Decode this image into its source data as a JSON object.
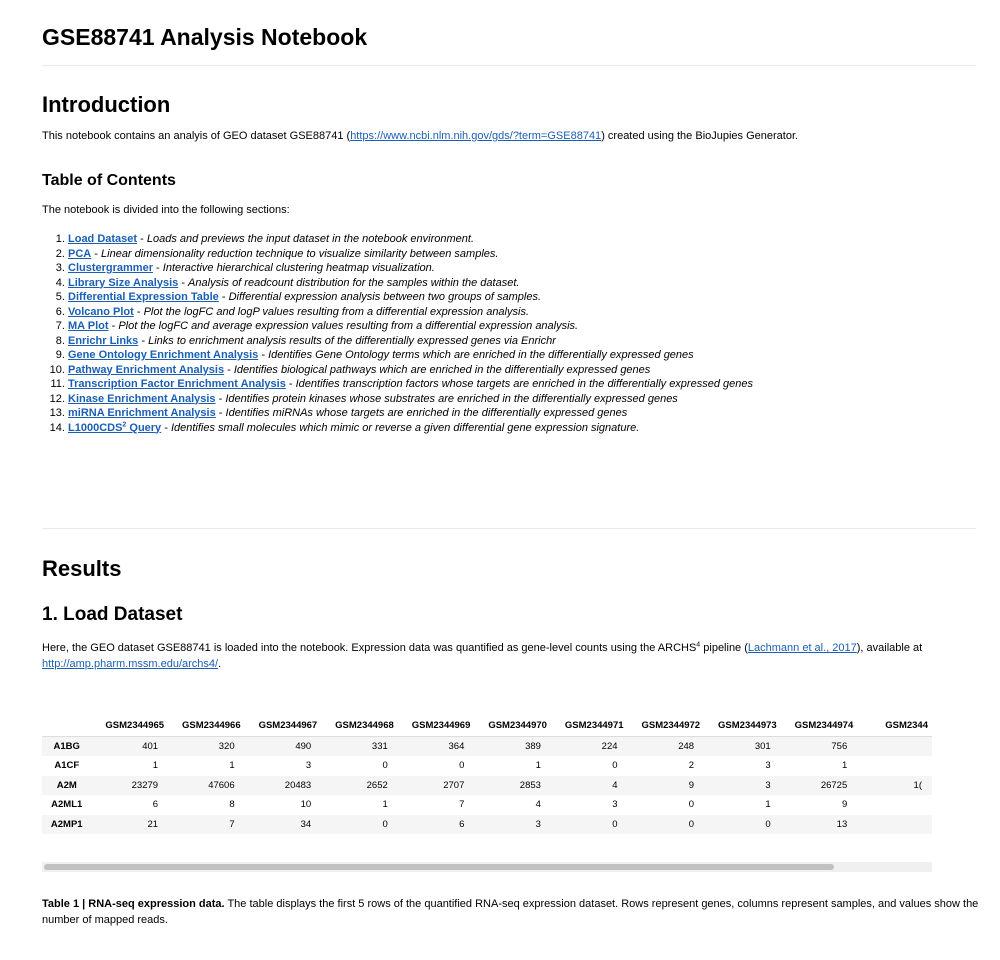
{
  "notebook": {
    "title": "GSE88741 Analysis Notebook"
  },
  "intro": {
    "heading": "Introduction",
    "text_before": "This notebook contains an analyis of GEO dataset GSE88741 (",
    "link": "https://www.ncbi.nlm.nih.gov/gds/?term=GSE88741",
    "text_after": ") created using the BioJupies Generator."
  },
  "toc": {
    "heading": "Table of Contents",
    "intro": "The notebook is divided into the following sections:",
    "items": [
      {
        "label": "Load Dataset",
        "desc": "Loads and previews the input dataset in the notebook environment."
      },
      {
        "label": "PCA",
        "desc": "Linear dimensionality reduction technique to visualize similarity between samples."
      },
      {
        "label": "Clustergrammer",
        "desc": "Interactive hierarchical clustering heatmap visualization."
      },
      {
        "label": "Library Size Analysis",
        "desc": "Analysis of readcount distribution for the samples within the dataset."
      },
      {
        "label": "Differential Expression Table",
        "desc": "Differential expression analysis between two groups of samples."
      },
      {
        "label": "Volcano Plot",
        "desc": "Plot the logFC and logP values resulting from a differential expression analysis."
      },
      {
        "label": "MA Plot",
        "desc": "Plot the logFC and average expression values resulting from a differential expression analysis."
      },
      {
        "label": "Enrichr Links",
        "desc": "Links to enrichment analysis results of the differentially expressed genes via Enrichr"
      },
      {
        "label": "Gene Ontology Enrichment Analysis",
        "desc": "Identifies Gene Ontology terms which are enriched in the differentially expressed genes"
      },
      {
        "label": "Pathway Enrichment Analysis",
        "desc": "Identifies biological pathways which are enriched in the differentially expressed genes"
      },
      {
        "label": "Transcription Factor Enrichment Analysis",
        "desc": "Identifies transcription factors whose targets are enriched in the differentially expressed genes"
      },
      {
        "label": "Kinase Enrichment Analysis",
        "desc": "Identifies protein kinases whose substrates are enriched in the differentially expressed genes"
      },
      {
        "label": "miRNA Enrichment Analysis",
        "desc": "Identifies miRNAs whose targets are enriched in the differentially expressed genes"
      },
      {
        "label": "L1000CDS",
        "label_sup": "2",
        "label_tail": " Query",
        "desc": "Identifies small molecules which mimic or reverse a given differential gene expression signature."
      }
    ]
  },
  "results": {
    "heading": "Results",
    "section1": {
      "heading": "1. Load Dataset",
      "text_1": "Here, the GEO dataset GSE88741 is loaded into the notebook. Expression data was quantified as gene-level counts using the ARCHS",
      "sup": "4",
      "text_2": " pipeline (",
      "citation": "Lachmann et al., 2017",
      "text_3": "), available at ",
      "link": "http://amp.pharm.mssm.edu/archs4/",
      "text_4": "."
    }
  },
  "table": {
    "columns": [
      "GSM2344965",
      "GSM2344966",
      "GSM2344967",
      "GSM2344968",
      "GSM2344969",
      "GSM2344970",
      "GSM2344971",
      "GSM2344972",
      "GSM2344973",
      "GSM2344974",
      "GSM2344"
    ],
    "rows": [
      {
        "gene": "A1BG",
        "values": [
          "401",
          "320",
          "490",
          "331",
          "364",
          "389",
          "224",
          "248",
          "301",
          "756",
          ""
        ]
      },
      {
        "gene": "A1CF",
        "values": [
          "1",
          "1",
          "3",
          "0",
          "0",
          "1",
          "0",
          "2",
          "3",
          "1",
          ""
        ]
      },
      {
        "gene": "A2M",
        "values": [
          "23279",
          "47606",
          "20483",
          "2652",
          "2707",
          "2853",
          "4",
          "9",
          "3",
          "26725",
          "1("
        ]
      },
      {
        "gene": "A2ML1",
        "values": [
          "6",
          "8",
          "10",
          "1",
          "7",
          "4",
          "3",
          "0",
          "1",
          "9",
          ""
        ]
      },
      {
        "gene": "A2MP1",
        "values": [
          "21",
          "7",
          "34",
          "0",
          "6",
          "3",
          "0",
          "0",
          "0",
          "13",
          ""
        ]
      }
    ]
  },
  "caption": {
    "bold": "Table 1 | RNA-seq expression data.",
    "text": " The table displays the first 5 rows of the quantified RNA-seq expression dataset. Rows represent genes, columns represent samples, and values show the number of mapped reads."
  }
}
